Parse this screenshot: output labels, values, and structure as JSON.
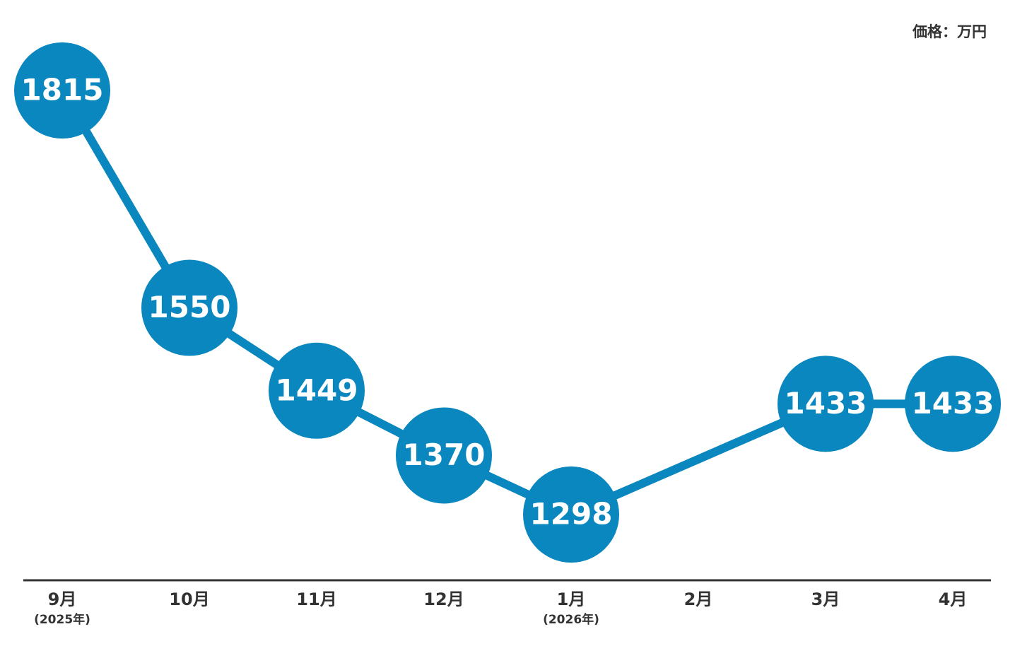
{
  "chart_data": {
    "type": "line",
    "unit_label": "価格：万円",
    "categories": [
      "9月",
      "10月",
      "11月",
      "12月",
      "1月",
      "2月",
      "3月",
      "4月"
    ],
    "category_sublabels": [
      "(2025年)",
      null,
      null,
      null,
      "(2026年)",
      null,
      null,
      null
    ],
    "series": [
      {
        "color": "#0a87be",
        "values": [
          1815,
          1550,
          1449,
          1370,
          1298,
          null,
          1433,
          1433
        ]
      }
    ],
    "connect_gaps": true
  }
}
